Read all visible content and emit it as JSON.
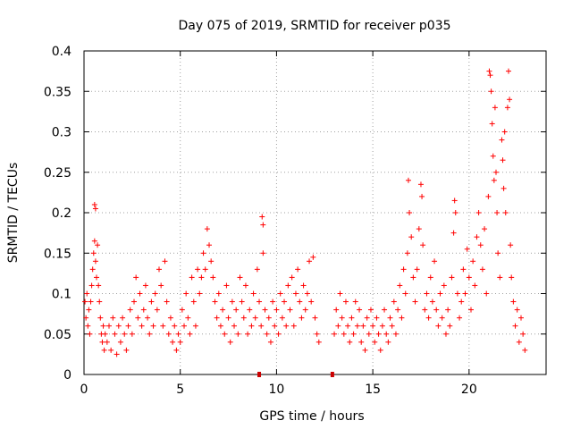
{
  "chart_data": {
    "type": "scatter",
    "title": "Day 075 of 2019, SRMTID for receiver p035",
    "xlabel": "GPS time / hours",
    "ylabel": "SRMTID / TECUs",
    "xlim": [
      0,
      24
    ],
    "ylim": [
      0,
      0.4
    ],
    "grid": true,
    "x_ticks": [
      0,
      5,
      10,
      15,
      20
    ],
    "x_tick_labels": [
      "0",
      "5",
      "10",
      "15",
      "20"
    ],
    "y_ticks": [
      0,
      0.05,
      0.1,
      0.15,
      0.2,
      0.25,
      0.3,
      0.35,
      0.4
    ],
    "y_tick_labels": [
      "0",
      "0.05",
      "0.1",
      "0.15",
      "0.2",
      "0.25",
      "0.3",
      "0.35",
      "0.4"
    ],
    "marker": "+",
    "color": "#ff0000",
    "series": [
      {
        "name": "SRMTID",
        "points": [
          [
            0.05,
            0.09
          ],
          [
            0.1,
            0.07
          ],
          [
            0.15,
            0.1
          ],
          [
            0.2,
            0.06
          ],
          [
            0.25,
            0.08
          ],
          [
            0.3,
            0.05
          ],
          [
            0.35,
            0.09
          ],
          [
            0.4,
            0.11
          ],
          [
            0.45,
            0.13
          ],
          [
            0.5,
            0.15
          ],
          [
            0.55,
            0.21
          ],
          [
            0.6,
            0.205
          ],
          [
            0.55,
            0.165
          ],
          [
            0.6,
            0.14
          ],
          [
            0.65,
            0.12
          ],
          [
            0.7,
            0.16
          ],
          [
            0.75,
            0.11
          ],
          [
            0.8,
            0.09
          ],
          [
            0.85,
            0.07
          ],
          [
            0.9,
            0.05
          ],
          [
            0.95,
            0.04
          ],
          [
            1.0,
            0.06
          ],
          [
            1.05,
            0.03
          ],
          [
            1.1,
            0.05
          ],
          [
            1.2,
            0.04
          ],
          [
            1.3,
            0.06
          ],
          [
            1.4,
            0.03
          ],
          [
            1.5,
            0.07
          ],
          [
            1.6,
            0.05
          ],
          [
            1.7,
            0.025
          ],
          [
            1.8,
            0.06
          ],
          [
            1.9,
            0.04
          ],
          [
            2.0,
            0.07
          ],
          [
            2.1,
            0.05
          ],
          [
            2.2,
            0.03
          ],
          [
            2.3,
            0.06
          ],
          [
            2.4,
            0.08
          ],
          [
            2.5,
            0.05
          ],
          [
            2.6,
            0.09
          ],
          [
            2.7,
            0.12
          ],
          [
            2.8,
            0.07
          ],
          [
            2.9,
            0.1
          ],
          [
            3.0,
            0.06
          ],
          [
            3.1,
            0.08
          ],
          [
            3.2,
            0.11
          ],
          [
            3.3,
            0.07
          ],
          [
            3.4,
            0.05
          ],
          [
            3.5,
            0.09
          ],
          [
            3.6,
            0.06
          ],
          [
            3.7,
            0.1
          ],
          [
            3.8,
            0.08
          ],
          [
            3.9,
            0.13
          ],
          [
            4.0,
            0.11
          ],
          [
            4.1,
            0.06
          ],
          [
            4.2,
            0.14
          ],
          [
            4.3,
            0.09
          ],
          [
            4.4,
            0.05
          ],
          [
            4.5,
            0.07
          ],
          [
            4.6,
            0.04
          ],
          [
            4.7,
            0.06
          ],
          [
            4.8,
            0.03
          ],
          [
            4.9,
            0.05
          ],
          [
            5.0,
            0.04
          ],
          [
            5.1,
            0.08
          ],
          [
            5.2,
            0.06
          ],
          [
            5.3,
            0.1
          ],
          [
            5.4,
            0.07
          ],
          [
            5.5,
            0.05
          ],
          [
            5.6,
            0.12
          ],
          [
            5.7,
            0.09
          ],
          [
            5.8,
            0.06
          ],
          [
            5.9,
            0.13
          ],
          [
            6.0,
            0.1
          ],
          [
            6.1,
            0.12
          ],
          [
            6.2,
            0.15
          ],
          [
            6.3,
            0.13
          ],
          [
            6.4,
            0.18
          ],
          [
            6.5,
            0.16
          ],
          [
            6.6,
            0.14
          ],
          [
            6.7,
            0.12
          ],
          [
            6.8,
            0.09
          ],
          [
            6.9,
            0.07
          ],
          [
            7.0,
            0.1
          ],
          [
            7.1,
            0.06
          ],
          [
            7.2,
            0.08
          ],
          [
            7.3,
            0.05
          ],
          [
            7.4,
            0.11
          ],
          [
            7.5,
            0.07
          ],
          [
            7.6,
            0.04
          ],
          [
            7.7,
            0.09
          ],
          [
            7.8,
            0.06
          ],
          [
            7.9,
            0.08
          ],
          [
            8.0,
            0.05
          ],
          [
            8.1,
            0.12
          ],
          [
            8.2,
            0.09
          ],
          [
            8.3,
            0.07
          ],
          [
            8.4,
            0.11
          ],
          [
            8.5,
            0.05
          ],
          [
            8.6,
            0.08
          ],
          [
            8.7,
            0.06
          ],
          [
            8.8,
            0.1
          ],
          [
            8.9,
            0.07
          ],
          [
            9.0,
            0.13
          ],
          [
            9.1,
            0.09
          ],
          [
            9.2,
            0.06
          ],
          [
            9.25,
            0.195
          ],
          [
            9.3,
            0.185
          ],
          [
            9.3,
            0.15
          ],
          [
            9.4,
            0.08
          ],
          [
            9.5,
            0.05
          ],
          [
            9.6,
            0.07
          ],
          [
            9.7,
            0.04
          ],
          [
            9.8,
            0.09
          ],
          [
            9.9,
            0.06
          ],
          [
            10.0,
            0.08
          ],
          [
            10.1,
            0.05
          ],
          [
            10.2,
            0.1
          ],
          [
            10.3,
            0.07
          ],
          [
            10.4,
            0.09
          ],
          [
            10.5,
            0.06
          ],
          [
            10.6,
            0.11
          ],
          [
            10.7,
            0.08
          ],
          [
            10.8,
            0.12
          ],
          [
            10.9,
            0.06
          ],
          [
            11.0,
            0.1
          ],
          [
            11.1,
            0.13
          ],
          [
            11.2,
            0.09
          ],
          [
            11.3,
            0.07
          ],
          [
            11.4,
            0.11
          ],
          [
            11.5,
            0.08
          ],
          [
            11.6,
            0.1
          ],
          [
            11.7,
            0.14
          ],
          [
            11.8,
            0.09
          ],
          [
            11.9,
            0.145
          ],
          [
            12.0,
            0.07
          ],
          [
            12.1,
            0.05
          ],
          [
            12.2,
            0.04
          ],
          [
            13.0,
            0.05
          ],
          [
            13.1,
            0.08
          ],
          [
            13.2,
            0.06
          ],
          [
            13.3,
            0.1
          ],
          [
            13.4,
            0.07
          ],
          [
            13.5,
            0.05
          ],
          [
            13.6,
            0.09
          ],
          [
            13.7,
            0.06
          ],
          [
            13.8,
            0.04
          ],
          [
            13.9,
            0.07
          ],
          [
            14.0,
            0.05
          ],
          [
            14.1,
            0.09
          ],
          [
            14.2,
            0.06
          ],
          [
            14.3,
            0.08
          ],
          [
            14.4,
            0.04
          ],
          [
            14.5,
            0.06
          ],
          [
            14.6,
            0.03
          ],
          [
            14.7,
            0.07
          ],
          [
            14.8,
            0.05
          ],
          [
            14.9,
            0.08
          ],
          [
            15.0,
            0.06
          ],
          [
            15.1,
            0.04
          ],
          [
            15.2,
            0.07
          ],
          [
            15.3,
            0.05
          ],
          [
            15.4,
            0.03
          ],
          [
            15.5,
            0.06
          ],
          [
            15.6,
            0.08
          ],
          [
            15.7,
            0.05
          ],
          [
            15.8,
            0.04
          ],
          [
            15.9,
            0.07
          ],
          [
            16.0,
            0.06
          ],
          [
            16.1,
            0.09
          ],
          [
            16.2,
            0.05
          ],
          [
            16.3,
            0.08
          ],
          [
            16.4,
            0.11
          ],
          [
            16.5,
            0.07
          ],
          [
            16.6,
            0.13
          ],
          [
            16.7,
            0.1
          ],
          [
            16.8,
            0.15
          ],
          [
            16.85,
            0.24
          ],
          [
            16.9,
            0.2
          ],
          [
            17.0,
            0.17
          ],
          [
            17.1,
            0.12
          ],
          [
            17.2,
            0.09
          ],
          [
            17.3,
            0.13
          ],
          [
            17.4,
            0.18
          ],
          [
            17.5,
            0.235
          ],
          [
            17.55,
            0.22
          ],
          [
            17.6,
            0.16
          ],
          [
            17.7,
            0.08
          ],
          [
            17.8,
            0.1
          ],
          [
            17.9,
            0.07
          ],
          [
            18.0,
            0.12
          ],
          [
            18.1,
            0.09
          ],
          [
            18.2,
            0.14
          ],
          [
            18.3,
            0.08
          ],
          [
            18.4,
            0.06
          ],
          [
            18.5,
            0.1
          ],
          [
            18.6,
            0.07
          ],
          [
            18.7,
            0.11
          ],
          [
            18.8,
            0.05
          ],
          [
            18.9,
            0.08
          ],
          [
            19.0,
            0.06
          ],
          [
            19.1,
            0.12
          ],
          [
            19.2,
            0.175
          ],
          [
            19.25,
            0.215
          ],
          [
            19.3,
            0.2
          ],
          [
            19.4,
            0.1
          ],
          [
            19.5,
            0.07
          ],
          [
            19.6,
            0.09
          ],
          [
            19.7,
            0.13
          ],
          [
            19.8,
            0.1
          ],
          [
            19.9,
            0.155
          ],
          [
            20.0,
            0.12
          ],
          [
            20.1,
            0.08
          ],
          [
            20.2,
            0.14
          ],
          [
            20.3,
            0.11
          ],
          [
            20.4,
            0.17
          ],
          [
            20.5,
            0.2
          ],
          [
            20.6,
            0.16
          ],
          [
            20.7,
            0.13
          ],
          [
            20.8,
            0.18
          ],
          [
            20.9,
            0.1
          ],
          [
            21.0,
            0.22
          ],
          [
            21.05,
            0.375
          ],
          [
            21.1,
            0.37
          ],
          [
            21.15,
            0.35
          ],
          [
            21.2,
            0.31
          ],
          [
            21.25,
            0.27
          ],
          [
            21.3,
            0.24
          ],
          [
            21.35,
            0.33
          ],
          [
            21.4,
            0.25
          ],
          [
            21.45,
            0.2
          ],
          [
            21.5,
            0.15
          ],
          [
            21.6,
            0.12
          ],
          [
            21.7,
            0.29
          ],
          [
            21.75,
            0.265
          ],
          [
            21.8,
            0.23
          ],
          [
            21.85,
            0.3
          ],
          [
            21.9,
            0.2
          ],
          [
            22.0,
            0.33
          ],
          [
            22.05,
            0.375
          ],
          [
            22.1,
            0.34
          ],
          [
            22.15,
            0.16
          ],
          [
            22.2,
            0.12
          ],
          [
            22.3,
            0.09
          ],
          [
            22.4,
            0.06
          ],
          [
            22.5,
            0.08
          ],
          [
            22.6,
            0.04
          ],
          [
            22.7,
            0.07
          ],
          [
            22.8,
            0.05
          ],
          [
            22.9,
            0.03
          ]
        ]
      }
    ],
    "zero_markers": [
      9.1,
      12.9
    ]
  }
}
